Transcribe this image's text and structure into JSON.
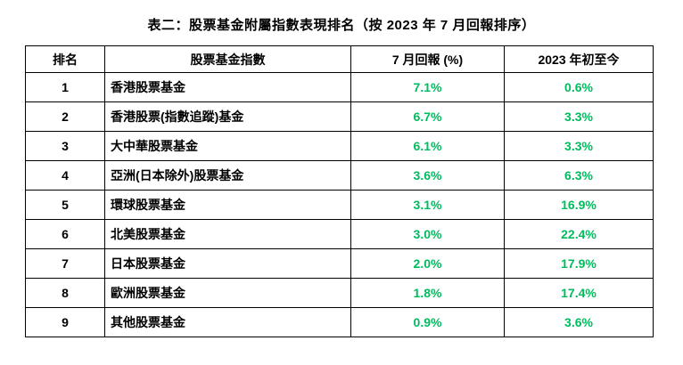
{
  "title": "表二：股票基金附屬指數表現排名（按 2023 年 7 月回報排序）",
  "table": {
    "headers": [
      "排名",
      "股票基金指數",
      "7 月回報 (%)",
      "2023 年初至今"
    ],
    "rows": [
      {
        "rank": "1",
        "fund": "香港股票基金",
        "july_return": "7.1%",
        "ytd_return": "0.6%"
      },
      {
        "rank": "2",
        "fund": "香港股票(指數追蹤)基金",
        "july_return": "6.7%",
        "ytd_return": "3.3%"
      },
      {
        "rank": "3",
        "fund": "大中華股票基金",
        "july_return": "6.1%",
        "ytd_return": "3.3%"
      },
      {
        "rank": "4",
        "fund": "亞洲(日本除外)股票基金",
        "july_return": "3.6%",
        "ytd_return": "6.3%"
      },
      {
        "rank": "5",
        "fund": "環球股票基金",
        "july_return": "3.1%",
        "ytd_return": "16.9%"
      },
      {
        "rank": "6",
        "fund": "北美股票基金",
        "july_return": "3.0%",
        "ytd_return": "22.4%"
      },
      {
        "rank": "7",
        "fund": "日本股票基金",
        "july_return": "2.0%",
        "ytd_return": "17.9%"
      },
      {
        "rank": "8",
        "fund": "歐洲股票基金",
        "july_return": "1.8%",
        "ytd_return": "17.4%"
      },
      {
        "rank": "9",
        "fund": "其他股票基金",
        "july_return": "0.9%",
        "ytd_return": "3.6%"
      }
    ]
  },
  "colors": {
    "value_green": "#00bc5f",
    "text": "#000000",
    "border": "#000000",
    "background": "#ffffff"
  }
}
